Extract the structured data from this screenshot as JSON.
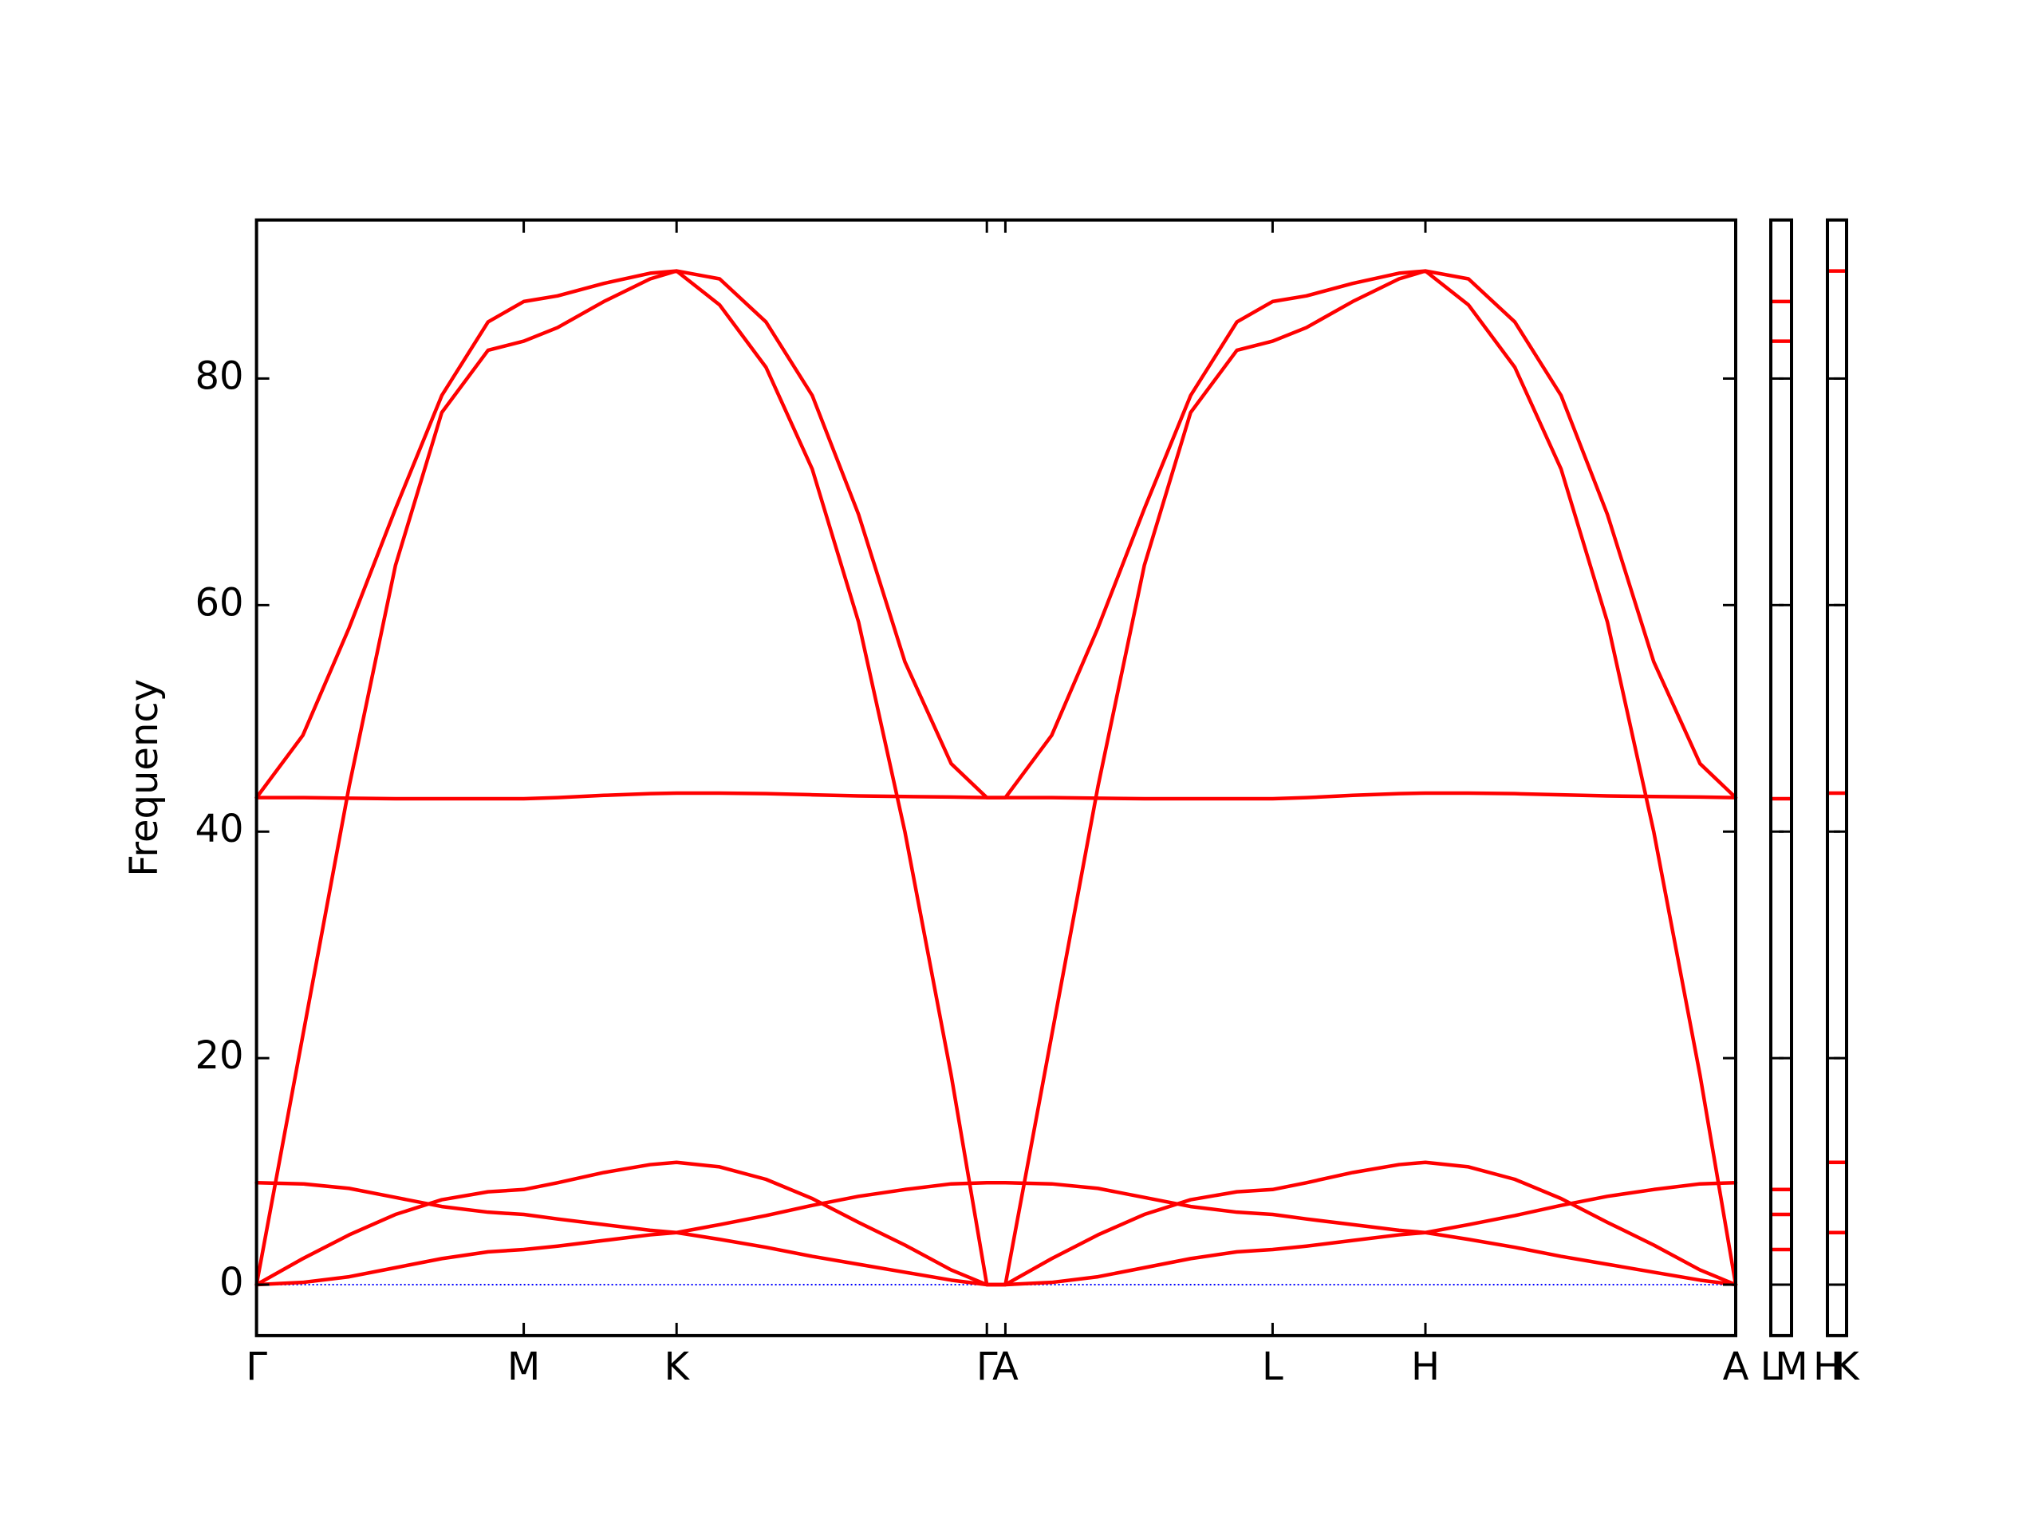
{
  "chart_data": [
    {
      "type": "line",
      "ylabel": "Frequency",
      "color": "#ff0000",
      "baseline_color": "#0000ff",
      "xlim": [
        0,
        3.194
      ],
      "ylim": [
        -4.5,
        94
      ],
      "xticks": [
        {
          "value": 0,
          "label": "Γ"
        },
        {
          "value": 0.577,
          "label": "M"
        },
        {
          "value": 0.907,
          "label": "K"
        },
        {
          "value": 1.577,
          "label": "Γ"
        },
        {
          "value": 1.617,
          "label": "A"
        },
        {
          "value": 2.194,
          "label": "L"
        },
        {
          "value": 2.524,
          "label": "H"
        },
        {
          "value": 3.194,
          "label": "A"
        }
      ],
      "yticks": [
        0,
        20,
        40,
        60,
        80
      ],
      "x": [
        0,
        0.1,
        0.2,
        0.3,
        0.4,
        0.5,
        0.577,
        0.65,
        0.75,
        0.85,
        0.907,
        1.0,
        1.1,
        1.2,
        1.3,
        1.4,
        1.5,
        1.577,
        1.617,
        1.717,
        1.817,
        1.917,
        2.017,
        2.117,
        2.194,
        2.267,
        2.367,
        2.467,
        2.524,
        2.617,
        2.717,
        2.817,
        2.917,
        3.017,
        3.117,
        3.194
      ],
      "series": [
        {
          "values": [
            0,
            22,
            44,
            63.5,
            77,
            82.5,
            83.3,
            84.5,
            86.8,
            88.8,
            89.5,
            86.5,
            81,
            72,
            58.5,
            40,
            18.5,
            0,
            0,
            22,
            44,
            63.5,
            77,
            82.5,
            83.3,
            84.5,
            86.8,
            88.8,
            89.5,
            86.5,
            81,
            72,
            58.5,
            40,
            18.5,
            0
          ]
        },
        {
          "values": [
            43,
            48.5,
            58,
            68.5,
            78.5,
            85,
            86.8,
            87.3,
            88.4,
            89.3,
            89.5,
            88.8,
            85,
            78.5,
            68,
            55,
            46,
            43,
            43,
            48.5,
            58,
            68.5,
            78.5,
            85,
            86.8,
            87.3,
            88.4,
            89.3,
            89.5,
            88.8,
            85,
            78.5,
            68,
            55,
            46,
            43
          ]
        },
        {
          "values": [
            43,
            43,
            42.95,
            42.9,
            42.9,
            42.9,
            42.9,
            43,
            43.2,
            43.35,
            43.4,
            43.4,
            43.35,
            43.25,
            43.15,
            43.1,
            43.05,
            43,
            43,
            43,
            42.95,
            42.9,
            42.9,
            42.9,
            42.9,
            43,
            43.2,
            43.35,
            43.4,
            43.4,
            43.35,
            43.25,
            43.15,
            43.1,
            43.05,
            43
          ]
        },
        {
          "values": [
            9,
            8.9,
            8.5,
            7.7,
            6.9,
            6.4,
            6.2,
            5.8,
            5.3,
            4.8,
            4.6,
            4.0,
            3.3,
            2.5,
            1.8,
            1.1,
            0.4,
            0,
            0,
            0.2,
            0.7,
            1.5,
            2.3,
            2.9,
            3.1,
            3.4,
            3.9,
            4.4,
            4.6,
            5.3,
            6.1,
            7.0,
            7.8,
            8.4,
            8.9,
            9
          ]
        },
        {
          "values": [
            0,
            2.3,
            4.4,
            6.2,
            7.5,
            8.2,
            8.4,
            9,
            9.9,
            10.6,
            10.8,
            10.4,
            9.3,
            7.6,
            5.5,
            3.5,
            1.3,
            0,
            0,
            2.3,
            4.4,
            6.2,
            7.5,
            8.2,
            8.4,
            9,
            9.9,
            10.6,
            10.8,
            10.4,
            9.3,
            7.6,
            5.5,
            3.5,
            1.3,
            0
          ]
        },
        {
          "values": [
            0,
            0.2,
            0.7,
            1.5,
            2.3,
            2.9,
            3.1,
            3.4,
            3.9,
            4.4,
            4.6,
            5.3,
            6.1,
            7.0,
            7.8,
            8.4,
            8.9,
            9,
            9,
            8.9,
            8.5,
            7.7,
            6.9,
            6.4,
            6.2,
            5.8,
            5.3,
            4.8,
            4.6,
            4.0,
            3.3,
            2.5,
            1.8,
            1.1,
            0.4,
            0
          ]
        }
      ]
    },
    {
      "type": "levels",
      "color": "#ff0000",
      "baseline_color": "#1a1a66",
      "ytick_labels": false,
      "xlim": [
        0,
        1
      ],
      "ylim": [
        -4.5,
        94
      ],
      "xticks": [
        {
          "value": 0,
          "label": "L"
        },
        {
          "value": 1,
          "label": "M"
        }
      ],
      "yticks": [
        0,
        20,
        40,
        60,
        80
      ],
      "values": [
        86.8,
        83.3,
        42.9,
        8.4,
        6.2,
        3.1
      ]
    },
    {
      "type": "levels",
      "color": "#ff0000",
      "baseline_color": "#1a1a66",
      "ytick_labels": false,
      "xlim": [
        0,
        1
      ],
      "ylim": [
        -4.5,
        94
      ],
      "xticks": [
        {
          "value": 0,
          "label": "H"
        },
        {
          "value": 1,
          "label": "K"
        }
      ],
      "yticks": [
        0,
        20,
        40,
        60,
        80
      ],
      "values": [
        89.5,
        43.4,
        10.8,
        4.6
      ]
    }
  ]
}
